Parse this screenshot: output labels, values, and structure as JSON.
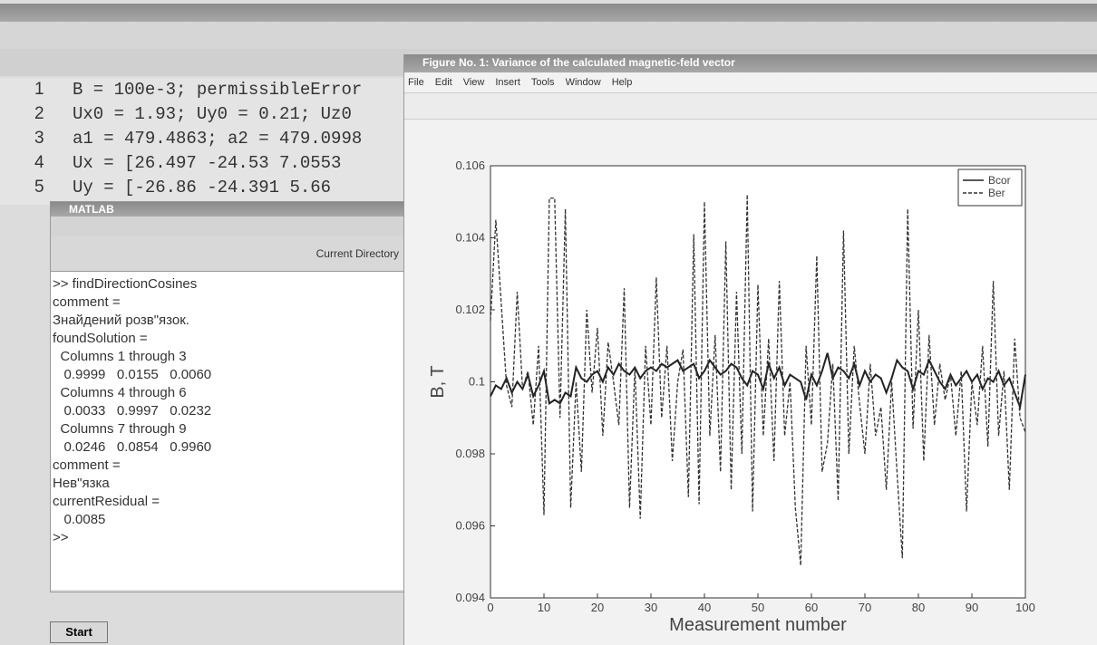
{
  "editor": {
    "code_lines": [
      {
        "number": "1",
        "text": "B = 100e-3; permissibleError"
      },
      {
        "number": "2",
        "text": "Ux0 = 1.93; Uy0 = 0.21; Uz0"
      },
      {
        "number": "3",
        "text": "a1 = 479.4863; a2 = 479.0998"
      },
      {
        "number": "4",
        "text": "Ux = [26.497 -24.53 7.0553"
      },
      {
        "number": "5",
        "text": "Uy = [-26.86 -24.391 5.66"
      }
    ]
  },
  "command_window": {
    "title": "MATLAB",
    "toolbar_label": "Current Directory",
    "lines": [
      ">> findDirectionCosines",
      "comment =",
      "Знайдений розв\"язок.",
      "foundSolution =",
      "  Columns 1 through 3",
      "   0.9999   0.0155   0.0060",
      "  Columns 4 through 6",
      "   0.0033   0.9997   0.0232",
      "  Columns 7 through 9",
      "   0.0246   0.0854   0.9960",
      "comment =",
      "Нев\"язка",
      "currentResidual =",
      "   0.0085",
      ">>"
    ]
  },
  "taskbar": {
    "start": "Start"
  },
  "figure_window": {
    "title": "Figure No. 1: Variance of the calculated magnetic-feld vector",
    "menu": [
      "File",
      "Edit",
      "View",
      "Insert",
      "Tools",
      "Window",
      "Help"
    ],
    "chart_data": {
      "type": "line",
      "x_label": "Measurement number",
      "y_label": "B, T",
      "x": [
        0,
        1,
        2,
        3,
        4,
        5,
        6,
        7,
        8,
        9,
        10,
        11,
        12,
        13,
        14,
        15,
        16,
        17,
        18,
        19,
        20,
        21,
        22,
        23,
        24,
        25,
        26,
        27,
        28,
        29,
        30,
        31,
        32,
        33,
        34,
        35,
        36,
        37,
        38,
        39,
        40,
        41,
        42,
        43,
        44,
        45,
        46,
        47,
        48,
        49,
        50,
        51,
        52,
        53,
        54,
        55,
        56,
        57,
        58,
        59,
        60,
        61,
        62,
        63,
        64,
        65,
        66,
        67,
        68,
        69,
        70,
        71,
        72,
        73,
        74,
        75,
        76,
        77,
        78,
        79,
        80,
        81,
        82,
        83,
        84,
        85,
        86,
        87,
        88,
        89,
        90,
        91,
        92,
        93,
        94,
        95,
        96,
        97,
        98,
        99,
        100
      ],
      "series": [
        {
          "name": "Bcor",
          "color": "#222222",
          "line_style": "solid",
          "values": [
            0.0996,
            0.0999,
            0.0998,
            0.1001,
            0.0997,
            0.1,
            0.0998,
            0.1002,
            0.0996,
            0.0999,
            0.1003,
            0.0994,
            0.0995,
            0.0994,
            0.0997,
            0.0996,
            0.1004,
            0.1001,
            0.1,
            0.1002,
            0.1003,
            0.1,
            0.1004,
            0.1002,
            0.1005,
            0.1003,
            0.1002,
            0.1004,
            0.1001,
            0.1003,
            0.1004,
            0.1003,
            0.1005,
            0.1004,
            0.1005,
            0.1006,
            0.1003,
            0.1004,
            0.1005,
            0.1001,
            0.1003,
            0.1006,
            0.1004,
            0.1002,
            0.1003,
            0.1005,
            0.1004,
            0.1001,
            0.0999,
            0.1003,
            0.1002,
            0.0998,
            0.1005,
            0.1001,
            0.1004,
            0.0999,
            0.1002,
            0.1001,
            0.1,
            0.0995,
            0.1002,
            0.0999,
            0.1003,
            0.1008,
            0.1001,
            0.1004,
            0.1003,
            0.1001,
            0.1005,
            0.0999,
            0.1003,
            0.1,
            0.1002,
            0.1001,
            0.0997,
            0.1001,
            0.1006,
            0.1004,
            0.1003,
            0.0998,
            0.1003,
            0.1002,
            0.1006,
            0.1003,
            0.1,
            0.0998,
            0.1002,
            0.0999,
            0.1001,
            0.1003,
            0.1,
            0.1002,
            0.0998,
            0.1001,
            0.1,
            0.1003,
            0.0999,
            0.1001,
            0.0997,
            0.0993,
            0.1002
          ]
        },
        {
          "name": "Ber",
          "color": "#333333",
          "line_style": "dashed",
          "values": [
            0.1017,
            0.1045,
            0.1022,
            0.0999,
            0.0993,
            0.1025,
            0.0998,
            0.1003,
            0.0988,
            0.101,
            0.0963,
            0.1051,
            0.1051,
            0.099,
            0.1048,
            0.0965,
            0.1,
            0.0975,
            0.102,
            0.0997,
            0.1015,
            0.0985,
            0.1011,
            0.1,
            0.0988,
            0.1026,
            0.0965,
            0.1004,
            0.0962,
            0.101,
            0.0988,
            0.1029,
            0.099,
            0.101,
            0.0978,
            0.1,
            0.1009,
            0.0968,
            0.1041,
            0.0966,
            0.105,
            0.0985,
            0.1013,
            0.0975,
            0.1039,
            0.097,
            0.1025,
            0.098,
            0.1052,
            0.0964,
            0.1027,
            0.0985,
            0.1012,
            0.0978,
            0.1028,
            0.0985,
            0.1,
            0.0965,
            0.0949,
            0.101,
            0.0988,
            0.1035,
            0.0975,
            0.0983,
            0.1005,
            0.0967,
            0.1042,
            0.098,
            0.101,
            0.0994,
            0.098,
            0.1005,
            0.0985,
            0.0993,
            0.097,
            0.1,
            0.0975,
            0.0951,
            0.1048,
            0.0987,
            0.102,
            0.0978,
            0.1013,
            0.0988,
            0.1005,
            0.0995,
            0.1002,
            0.0985,
            0.1003,
            0.0964,
            0.1,
            0.0988,
            0.101,
            0.0982,
            0.1028,
            0.0985,
            0.1003,
            0.097,
            0.1012,
            0.099,
            0.0986
          ]
        }
      ],
      "xlim": [
        0,
        100
      ],
      "xticks": [
        0,
        10,
        20,
        30,
        40,
        50,
        60,
        70,
        80,
        90,
        100
      ],
      "ylim": [
        0.094,
        0.106
      ],
      "yticks": [
        0.094,
        0.096,
        0.098,
        0.1,
        0.102,
        0.104,
        0.106
      ],
      "legend": "upper right",
      "grid": false
    }
  }
}
